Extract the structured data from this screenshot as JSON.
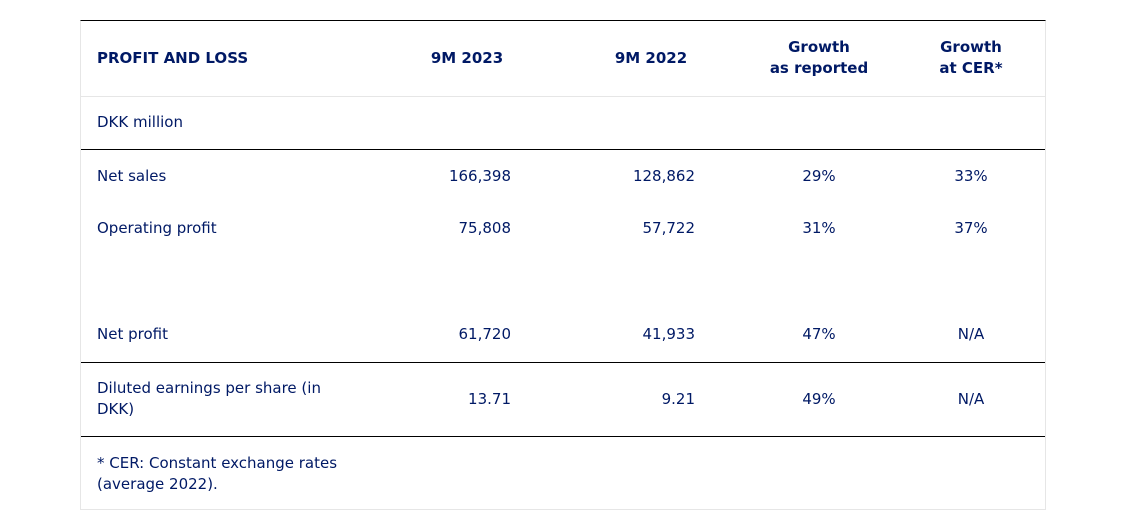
{
  "table": {
    "header": {
      "title": "PROFIT AND LOSS",
      "col_2023": "9M 2023",
      "col_2022": "9M 2022",
      "growth_reported": [
        "Growth",
        "as reported"
      ],
      "growth_cer": [
        "Growth",
        "at CER*"
      ]
    },
    "unit": "DKK million",
    "rows": [
      {
        "label": "Net sales",
        "v2023": "166,398",
        "v2022": "128,862",
        "reported": "29%",
        "cer": "33%"
      },
      {
        "label": "Operating profit",
        "v2023": "75,808",
        "v2022": "57,722",
        "reported": "31%",
        "cer": "37%"
      },
      {
        "label": "Net profit",
        "v2023": "61,720",
        "v2022": "41,933",
        "reported": "47%",
        "cer": "N/A"
      }
    ],
    "eps": {
      "label": [
        "Diluted earnings per share (in",
        "DKK)"
      ],
      "v2023": "13.71",
      "v2022": "9.21",
      "reported": "49%",
      "cer": "N/A"
    },
    "footnote": [
      "* CER: Constant exchange rates",
      "(average 2022)."
    ]
  }
}
